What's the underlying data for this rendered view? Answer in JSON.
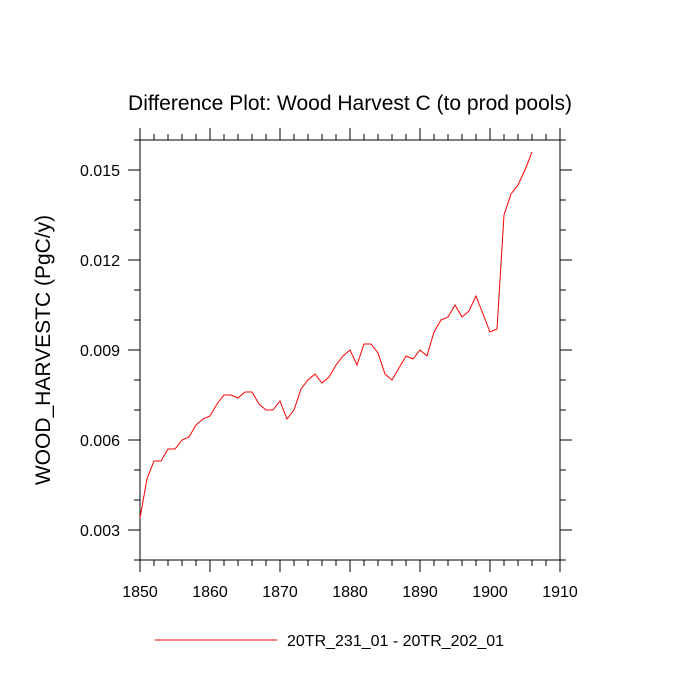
{
  "chart_data": {
    "type": "line",
    "title": "Difference Plot: Wood Harvest C (to prod pools)",
    "xlabel": "",
    "ylabel": "WOOD_HARVESTC  (PgC/y)",
    "xlim": [
      1850,
      1910
    ],
    "ylim": [
      0.002,
      0.016
    ],
    "xticks": [
      1850,
      1860,
      1870,
      1880,
      1890,
      1900,
      1910
    ],
    "xtick_labels": [
      "1850",
      "1860",
      "1870",
      "1880",
      "1890",
      "1900",
      "1910"
    ],
    "yticks": [
      0.003,
      0.006,
      0.009,
      0.012,
      0.015
    ],
    "ytick_labels": [
      "0.003",
      "0.006",
      "0.009",
      "0.012",
      "0.015"
    ],
    "grid": false,
    "legend_position": "bottom",
    "series": [
      {
        "name": "20TR_231_01 - 20TR_202_01",
        "color": "#ff0000",
        "x": [
          1850,
          1851,
          1852,
          1853,
          1854,
          1855,
          1856,
          1857,
          1858,
          1859,
          1860,
          1861,
          1862,
          1863,
          1864,
          1865,
          1866,
          1867,
          1868,
          1869,
          1870,
          1871,
          1872,
          1873,
          1874,
          1875,
          1876,
          1877,
          1878,
          1879,
          1880,
          1881,
          1882,
          1883,
          1884,
          1885,
          1886,
          1887,
          1888,
          1889,
          1890,
          1891,
          1892,
          1893,
          1894,
          1895,
          1896,
          1897,
          1898,
          1899,
          1900,
          1901,
          1902,
          1903,
          1904,
          1905,
          1906
        ],
        "values": [
          0.0034,
          0.0047,
          0.0053,
          0.0053,
          0.0057,
          0.0057,
          0.006,
          0.0061,
          0.0065,
          0.0067,
          0.0068,
          0.0072,
          0.0075,
          0.0075,
          0.0074,
          0.0076,
          0.0076,
          0.0072,
          0.007,
          0.007,
          0.0073,
          0.0067,
          0.007,
          0.0077,
          0.008,
          0.0082,
          0.0079,
          0.0081,
          0.0085,
          0.0088,
          0.009,
          0.0085,
          0.0092,
          0.0092,
          0.0089,
          0.0082,
          0.008,
          0.0084,
          0.0088,
          0.0087,
          0.009,
          0.0088,
          0.0096,
          0.01,
          0.0101,
          0.0105,
          0.0101,
          0.0103,
          0.0108,
          0.0102,
          0.0096,
          0.0097,
          0.0135,
          0.0142,
          0.0145,
          0.015,
          0.0156
        ]
      }
    ]
  }
}
